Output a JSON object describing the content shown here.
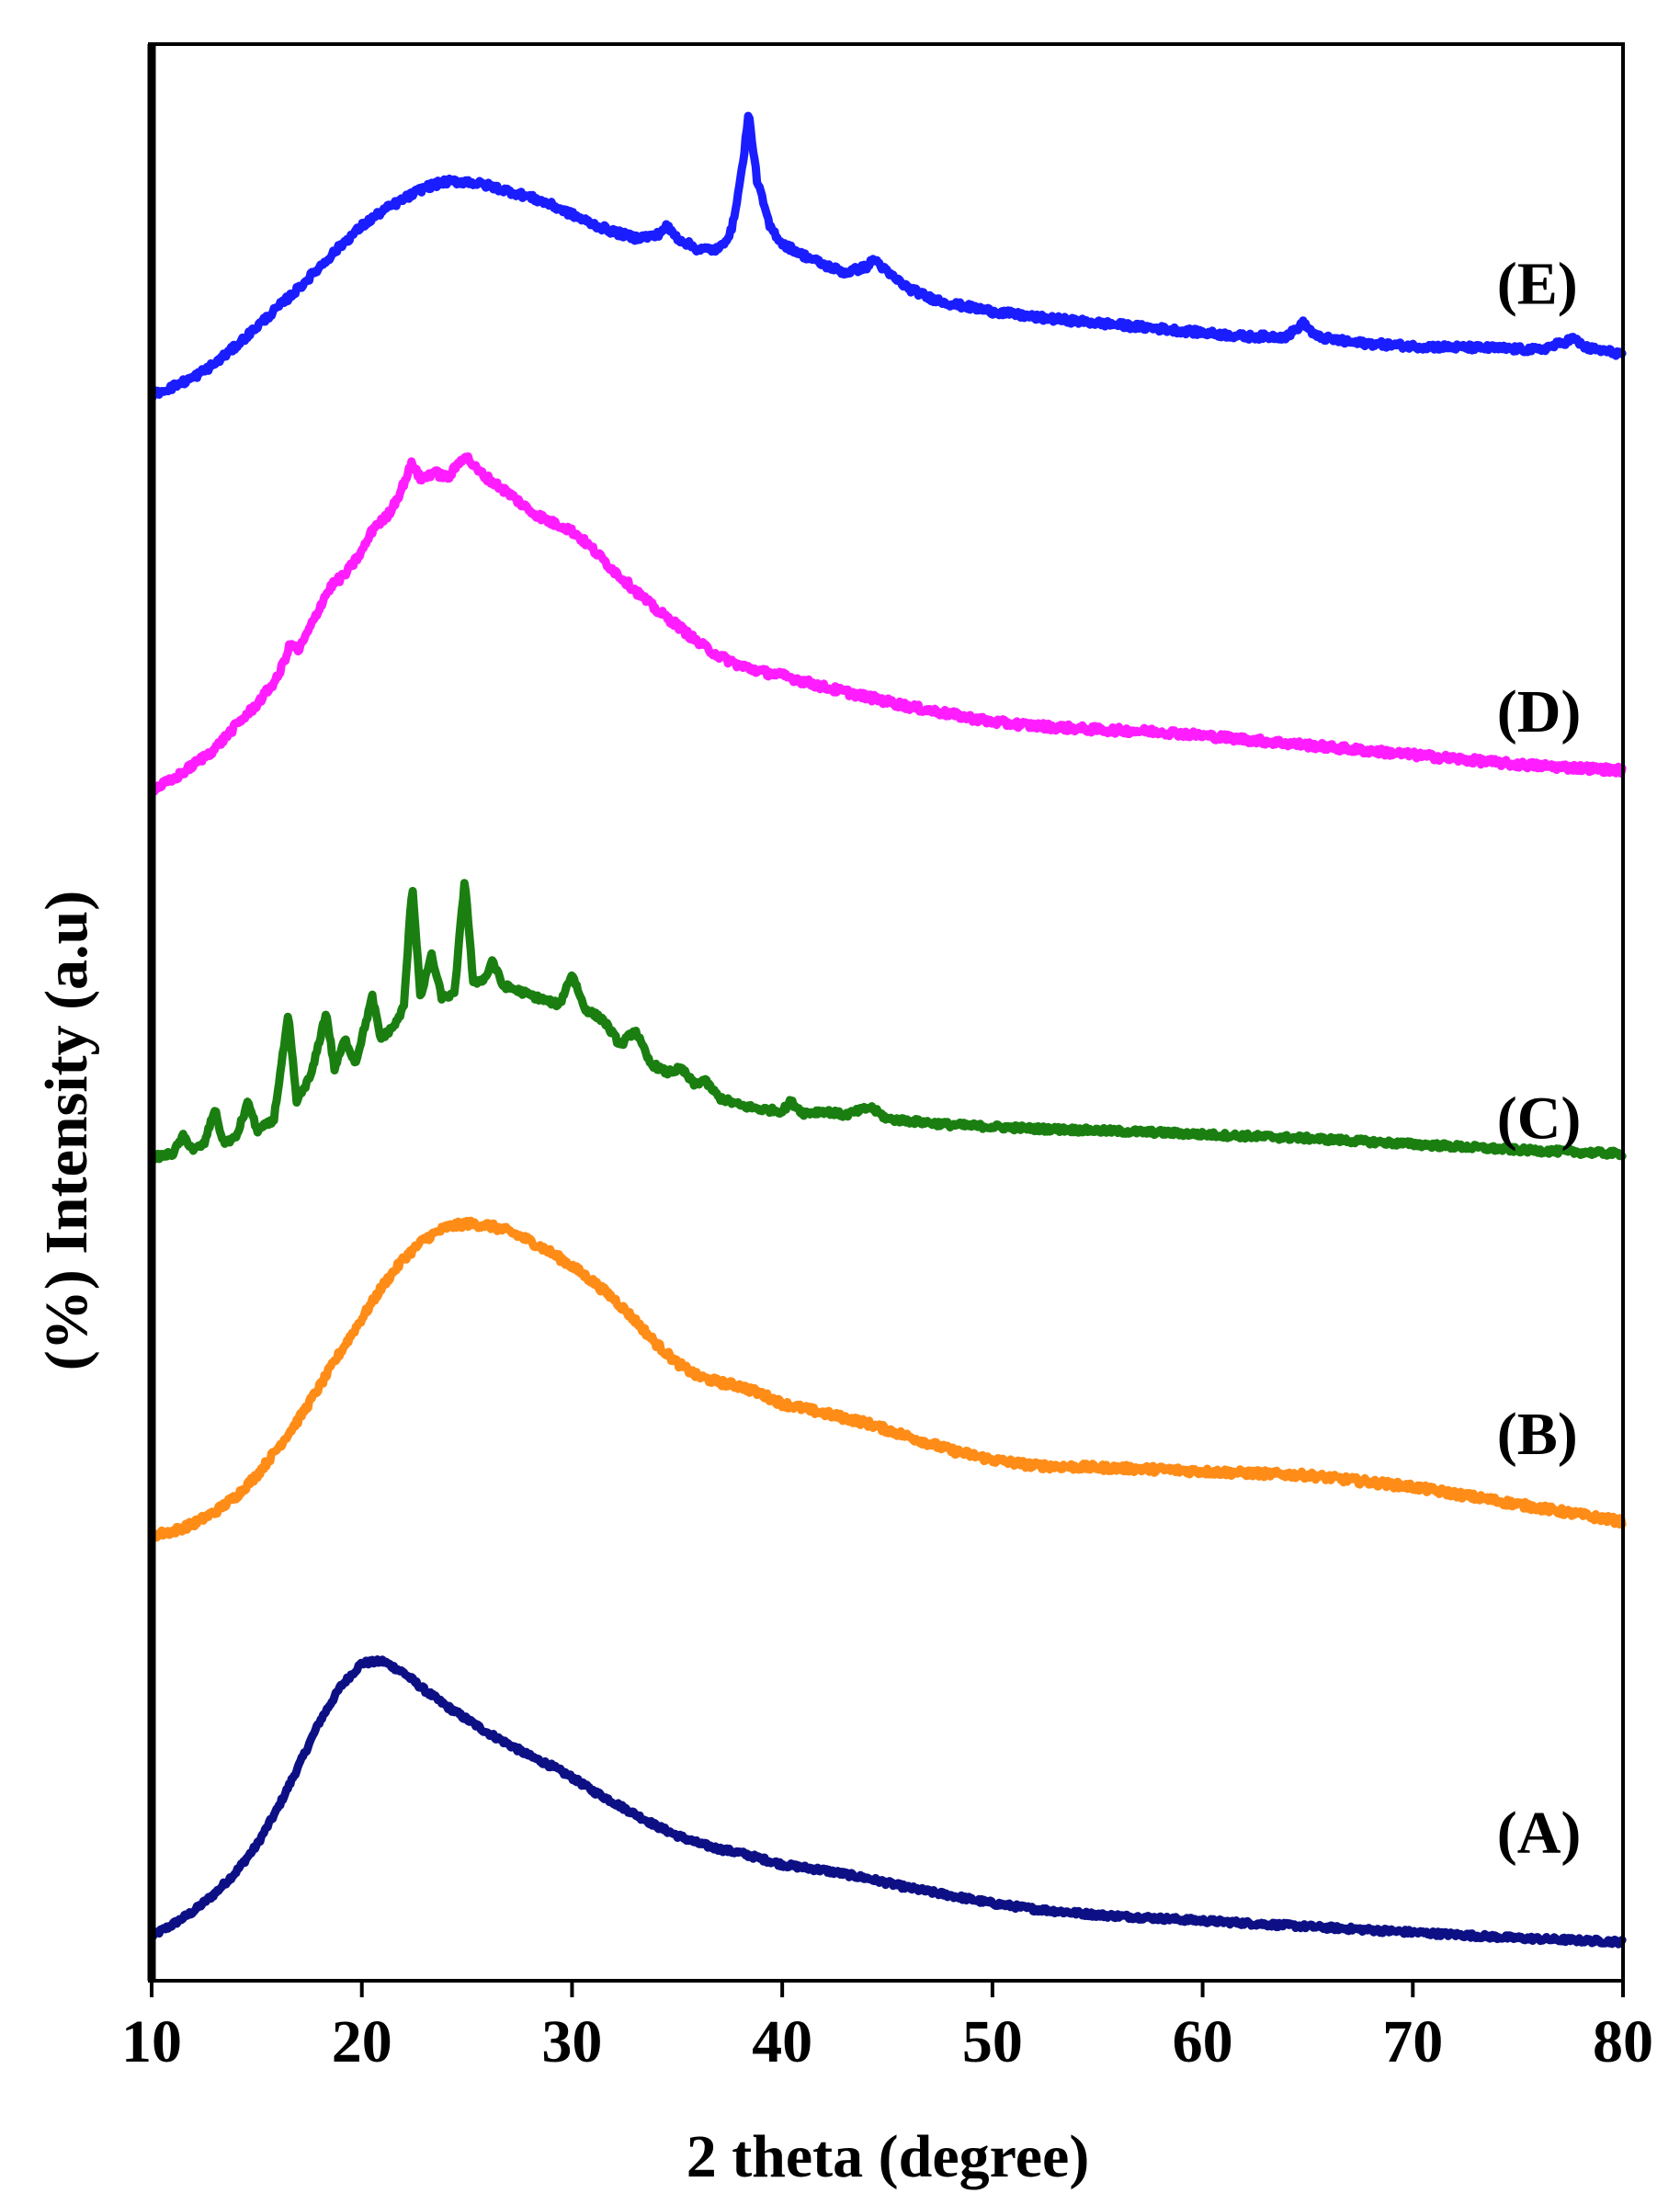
{
  "chart_data": {
    "type": "line",
    "title": "",
    "xlabel": "2 theta (degree)",
    "ylabel": "(%) Intensity (a.u)",
    "xlim": [
      10,
      80
    ],
    "ylim": [
      0,
      100
    ],
    "xticks": [
      10,
      20,
      30,
      40,
      50,
      60,
      70,
      80
    ],
    "xtick_labels": [
      "10",
      "20",
      "30",
      "40",
      "50",
      "60",
      "70",
      "80"
    ],
    "grid": false,
    "legend": "inline labels at right of each curve",
    "series": [
      {
        "name": "(A)",
        "color": "#0d1085",
        "label_x": 74,
        "label_y": 6.6,
        "noise": 0.12,
        "points": [
          [
            10,
            2.3
          ],
          [
            11,
            2.9
          ],
          [
            12,
            3.6
          ],
          [
            13,
            4.5
          ],
          [
            14,
            5.6
          ],
          [
            15,
            7.0
          ],
          [
            16,
            8.9
          ],
          [
            17,
            11.1
          ],
          [
            18,
            13.4
          ],
          [
            19,
            15.2
          ],
          [
            20,
            16.4
          ],
          [
            21,
            16.5
          ],
          [
            22,
            15.9
          ],
          [
            23,
            15.0
          ],
          [
            24,
            14.2
          ],
          [
            25,
            13.5
          ],
          [
            26,
            12.8
          ],
          [
            27,
            12.2
          ],
          [
            28,
            11.6
          ],
          [
            29,
            11.1
          ],
          [
            30,
            10.5
          ],
          [
            31,
            9.8
          ],
          [
            32,
            9.2
          ],
          [
            33,
            8.6
          ],
          [
            34,
            8.0
          ],
          [
            35,
            7.5
          ],
          [
            36,
            7.1
          ],
          [
            37,
            6.8
          ],
          [
            38,
            6.6
          ],
          [
            39,
            6.3
          ],
          [
            40,
            6.0
          ],
          [
            42,
            5.7
          ],
          [
            44,
            5.3
          ],
          [
            46,
            4.8
          ],
          [
            48,
            4.4
          ],
          [
            50,
            4.0
          ],
          [
            52,
            3.7
          ],
          [
            55,
            3.4
          ],
          [
            60,
            3.1
          ],
          [
            65,
            2.8
          ],
          [
            70,
            2.5
          ],
          [
            75,
            2.2
          ],
          [
            80,
            2.0
          ]
        ]
      },
      {
        "name": "(B)",
        "color": "#ff8c17",
        "label_x": 74,
        "label_y": 27.2,
        "noise": 0.18,
        "points": [
          [
            10,
            23.0
          ],
          [
            11,
            23.2
          ],
          [
            12,
            23.6
          ],
          [
            13,
            24.2
          ],
          [
            14,
            25.0
          ],
          [
            15,
            26.1
          ],
          [
            16,
            27.5
          ],
          [
            17,
            29.0
          ],
          [
            18,
            30.7
          ],
          [
            19,
            32.5
          ],
          [
            20,
            34.2
          ],
          [
            21,
            35.9
          ],
          [
            22,
            37.3
          ],
          [
            23,
            38.3
          ],
          [
            24,
            38.9
          ],
          [
            25,
            39.1
          ],
          [
            26,
            39.0
          ],
          [
            27,
            38.7
          ],
          [
            28,
            38.2
          ],
          [
            29,
            37.6
          ],
          [
            30,
            36.9
          ],
          [
            31,
            36.1
          ],
          [
            32,
            35.2
          ],
          [
            33,
            34.1
          ],
          [
            34,
            32.9
          ],
          [
            35,
            31.9
          ],
          [
            36,
            31.2
          ],
          [
            37,
            30.9
          ],
          [
            38,
            30.7
          ],
          [
            39,
            30.3
          ],
          [
            40,
            29.8
          ],
          [
            42,
            29.3
          ],
          [
            44,
            28.8
          ],
          [
            46,
            28.1
          ],
          [
            48,
            27.4
          ],
          [
            50,
            26.9
          ],
          [
            52,
            26.6
          ],
          [
            55,
            26.5
          ],
          [
            58,
            26.4
          ],
          [
            60,
            26.3
          ],
          [
            65,
            26.1
          ],
          [
            70,
            25.5
          ],
          [
            75,
            24.6
          ],
          [
            80,
            23.7
          ]
        ]
      },
      {
        "name": "(C)",
        "color": "#1a7f10",
        "label_x": 74,
        "label_y": 43.5,
        "noise": 0.14,
        "points": [
          [
            10,
            42.5
          ],
          [
            11,
            42.7
          ],
          [
            11.5,
            43.6
          ],
          [
            12,
            42.9
          ],
          [
            12.5,
            43.2
          ],
          [
            13,
            45.0
          ],
          [
            13.4,
            43.3
          ],
          [
            14,
            43.5
          ],
          [
            14.6,
            45.4
          ],
          [
            15,
            43.9
          ],
          [
            15.8,
            44.4
          ],
          [
            16.5,
            49.8
          ],
          [
            16.9,
            45.4
          ],
          [
            17.6,
            46.8
          ],
          [
            18.3,
            50.0
          ],
          [
            18.7,
            47.1
          ],
          [
            19.2,
            48.6
          ],
          [
            19.7,
            47.4
          ],
          [
            20.5,
            50.8
          ],
          [
            20.9,
            48.6
          ],
          [
            21.6,
            49.4
          ],
          [
            22,
            50.3
          ],
          [
            22.4,
            56.6
          ],
          [
            22.8,
            50.7
          ],
          [
            23.3,
            53.0
          ],
          [
            23.8,
            50.8
          ],
          [
            24.4,
            50.9
          ],
          [
            24.9,
            56.9
          ],
          [
            25.3,
            51.5
          ],
          [
            25.9,
            51.8
          ],
          [
            26.2,
            52.7
          ],
          [
            26.7,
            51.4
          ],
          [
            27.5,
            51.1
          ],
          [
            28.5,
            50.7
          ],
          [
            29.4,
            50.4
          ],
          [
            30,
            52.0
          ],
          [
            30.6,
            50.2
          ],
          [
            31.5,
            49.6
          ],
          [
            32.3,
            48.3
          ],
          [
            33,
            49.1
          ],
          [
            33.7,
            47.4
          ],
          [
            34.5,
            46.9
          ],
          [
            35.2,
            47.1
          ],
          [
            35.8,
            46.3
          ],
          [
            36.3,
            46.5
          ],
          [
            37,
            45.6
          ],
          [
            38,
            45.2
          ],
          [
            39,
            45.0
          ],
          [
            40,
            44.9
          ],
          [
            40.4,
            45.4
          ],
          [
            41,
            44.8
          ],
          [
            42,
            44.9
          ],
          [
            43,
            44.7
          ],
          [
            44.2,
            45.1
          ],
          [
            45,
            44.5
          ],
          [
            46,
            44.4
          ],
          [
            47,
            44.3
          ],
          [
            48,
            44.2
          ],
          [
            50,
            44.1
          ],
          [
            52,
            44.0
          ],
          [
            55,
            43.9
          ],
          [
            58,
            43.8
          ],
          [
            60,
            43.7
          ],
          [
            65,
            43.5
          ],
          [
            70,
            43.2
          ],
          [
            75,
            42.9
          ],
          [
            80,
            42.7
          ]
        ]
      },
      {
        "name": "(D)",
        "color": "#ff1dff",
        "label_x": 74,
        "label_y": 64.5,
        "noise": 0.18,
        "points": [
          [
            10,
            61.5
          ],
          [
            11,
            62.0
          ],
          [
            12,
            62.8
          ],
          [
            13,
            63.6
          ],
          [
            14,
            64.8
          ],
          [
            15,
            65.9
          ],
          [
            16,
            67.3
          ],
          [
            16.6,
            69.0
          ],
          [
            17,
            68.7
          ],
          [
            17.6,
            70.0
          ],
          [
            18.2,
            71.4
          ],
          [
            18.6,
            72.1
          ],
          [
            19.2,
            72.6
          ],
          [
            20,
            73.8
          ],
          [
            20.6,
            75.1
          ],
          [
            21.2,
            75.6
          ],
          [
            21.8,
            76.8
          ],
          [
            22.4,
            78.4
          ],
          [
            22.8,
            77.5
          ],
          [
            23.4,
            77.9
          ],
          [
            24.1,
            77.6
          ],
          [
            24.9,
            78.8
          ],
          [
            25.5,
            78.0
          ],
          [
            26.2,
            77.4
          ],
          [
            27,
            76.8
          ],
          [
            28,
            75.9
          ],
          [
            29,
            75.3
          ],
          [
            29.6,
            75.1
          ],
          [
            30.2,
            74.7
          ],
          [
            31,
            73.9
          ],
          [
            32,
            72.8
          ],
          [
            33,
            71.8
          ],
          [
            34,
            70.8
          ],
          [
            35,
            70.0
          ],
          [
            36,
            69.1
          ],
          [
            37,
            68.4
          ],
          [
            38,
            67.9
          ],
          [
            39,
            67.6
          ],
          [
            40,
            67.4
          ],
          [
            42,
            66.8
          ],
          [
            44,
            66.3
          ],
          [
            46,
            65.8
          ],
          [
            48,
            65.4
          ],
          [
            50,
            65.0
          ],
          [
            52,
            64.8
          ],
          [
            55,
            64.6
          ],
          [
            58,
            64.5
          ],
          [
            60,
            64.3
          ],
          [
            65,
            63.8
          ],
          [
            70,
            63.3
          ],
          [
            75,
            62.8
          ],
          [
            80,
            62.5
          ]
        ]
      },
      {
        "name": "(E)",
        "color": "#1a1dff",
        "label_x": 74,
        "label_y": 86.6,
        "noise": 0.16,
        "points": [
          [
            10,
            81.9
          ],
          [
            11,
            82.3
          ],
          [
            12,
            82.8
          ],
          [
            13,
            83.5
          ],
          [
            14,
            84.4
          ],
          [
            15,
            85.4
          ],
          [
            16,
            86.4
          ],
          [
            17,
            87.4
          ],
          [
            18,
            88.5
          ],
          [
            19,
            89.6
          ],
          [
            20,
            90.6
          ],
          [
            21,
            91.4
          ],
          [
            22,
            92.0
          ],
          [
            23,
            92.6
          ],
          [
            24,
            92.9
          ],
          [
            25,
            92.9
          ],
          [
            26,
            92.7
          ],
          [
            27,
            92.4
          ],
          [
            28,
            92.1
          ],
          [
            29,
            91.7
          ],
          [
            30,
            91.2
          ],
          [
            31,
            90.7
          ],
          [
            32,
            90.3
          ],
          [
            33,
            90.0
          ],
          [
            34,
            90.1
          ],
          [
            34.5,
            90.6
          ],
          [
            35,
            90.0
          ],
          [
            36,
            89.4
          ],
          [
            37,
            89.4
          ],
          [
            37.6,
            90.4
          ],
          [
            38.1,
            93.6
          ],
          [
            38.4,
            96.4
          ],
          [
            38.8,
            93.0
          ],
          [
            39.4,
            90.6
          ],
          [
            40,
            89.7
          ],
          [
            41,
            89.1
          ],
          [
            42,
            88.6
          ],
          [
            43,
            88.2
          ],
          [
            44,
            88.5
          ],
          [
            44.4,
            88.9
          ],
          [
            45,
            88.2
          ],
          [
            46,
            87.4
          ],
          [
            47,
            86.9
          ],
          [
            48,
            86.6
          ],
          [
            50,
            86.2
          ],
          [
            52,
            85.9
          ],
          [
            55,
            85.6
          ],
          [
            58,
            85.3
          ],
          [
            60,
            85.1
          ],
          [
            62,
            84.9
          ],
          [
            64,
            84.9
          ],
          [
            64.8,
            85.6
          ],
          [
            65.4,
            84.9
          ],
          [
            67,
            84.6
          ],
          [
            70,
            84.4
          ],
          [
            74,
            84.3
          ],
          [
            76,
            84.2
          ],
          [
            77.2,
            84.6
          ],
          [
            77.6,
            84.8
          ],
          [
            78.3,
            84.3
          ],
          [
            80,
            84.0
          ]
        ]
      }
    ]
  }
}
